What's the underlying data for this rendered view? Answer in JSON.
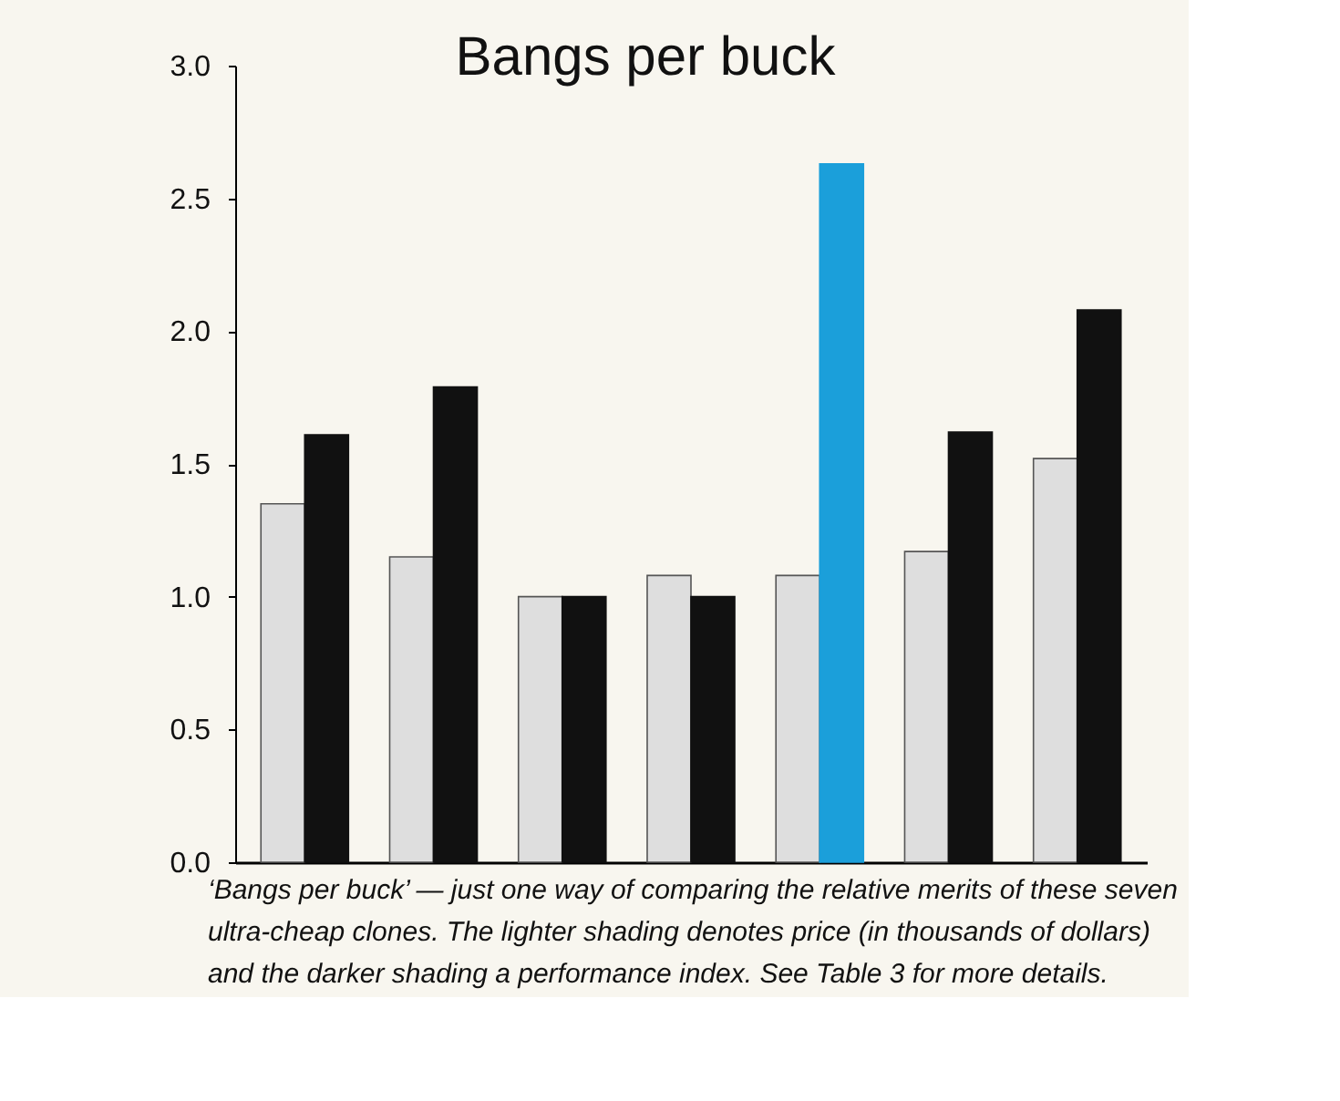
{
  "chart_data": {
    "type": "bar",
    "title": "Bangs per buck",
    "categories": [
      null,
      null,
      null,
      null,
      null,
      null,
      null
    ],
    "series": [
      {
        "color": "#dedede",
        "values": [
          1.35,
          1.15,
          1.0,
          1.08,
          1.08,
          1.17,
          1.52
        ]
      },
      {
        "colors": [
          "#111111",
          "#111111",
          "#111111",
          "#111111",
          "#1b9fda",
          "#111111",
          "#111111"
        ],
        "values": [
          1.61,
          1.79,
          1.0,
          1.0,
          2.63,
          1.62,
          2.08
        ]
      }
    ],
    "ylim": [
      0,
      3
    ],
    "yticks": [
      {
        "value": 0,
        "label": "0.0"
      },
      0.5,
      {
        "value": 1,
        "label": "1.0"
      },
      1.5,
      {
        "value": 2,
        "label": "2.0"
      },
      2.5,
      {
        "value": 3,
        "label": "3.0"
      }
    ],
    "tick_labels": "y",
    "annotations": [
      "‘Bangs per buck’ — just one way of comparing the relative merits of these seven ultra-cheap clones. The lighter shading denotes price (in thousands of dollars) and the darker shading a performance index. See Table 3 for more details."
    ]
  }
}
